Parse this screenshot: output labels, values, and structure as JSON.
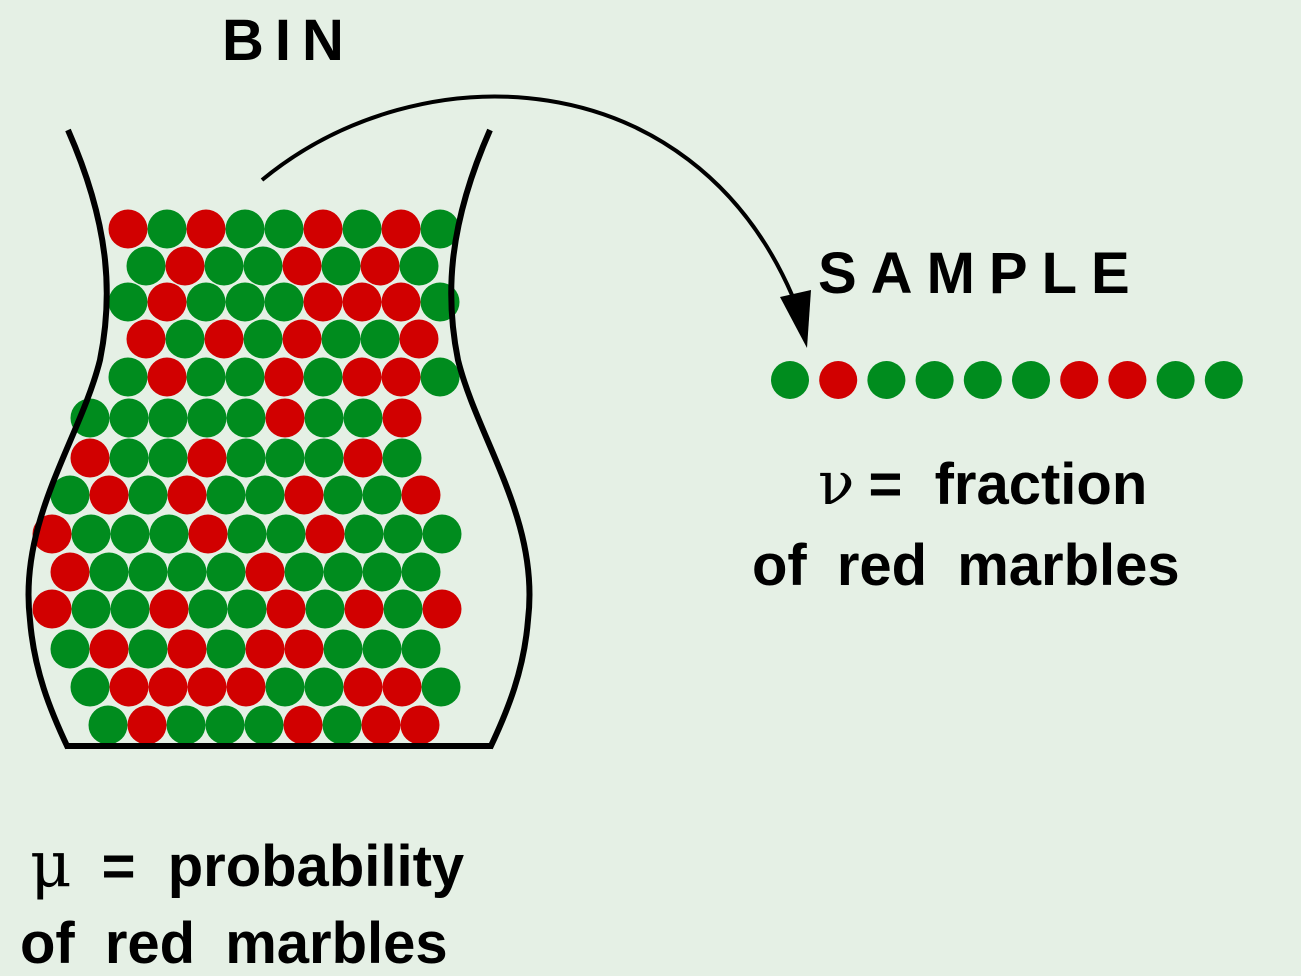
{
  "bin": {
    "title": "BIN",
    "symbol": "μ",
    "equals": "=",
    "description_line1": "probability",
    "description_line2": "of red marbles",
    "marble_rows": [
      "RGRGGRGRG",
      "GRGGRGRG",
      "GRGGGRRRG",
      "RGRGRGGR",
      "GRGGRGRRG",
      "GGGGGRGGR",
      "RGGRGGGRG",
      "GRGRGGRGGR",
      "RGGGRGGRGGG",
      "RGGGGRGGGG",
      "RGGRGGRGRGR",
      "GRGRGRRGGG",
      "GRRRRGGRRG",
      "GRGGGRGRR"
    ]
  },
  "sample": {
    "title": "SAMPLE",
    "symbol": "ν",
    "equals": "=",
    "description_line1": "fraction",
    "description_line2": "of red marbles",
    "marbles": "GRGGGGRRGG"
  },
  "colors": {
    "background": "#e5f0e5",
    "red_marble": "#d10000",
    "green_marble": "#008c1e",
    "outline": "#000000"
  }
}
